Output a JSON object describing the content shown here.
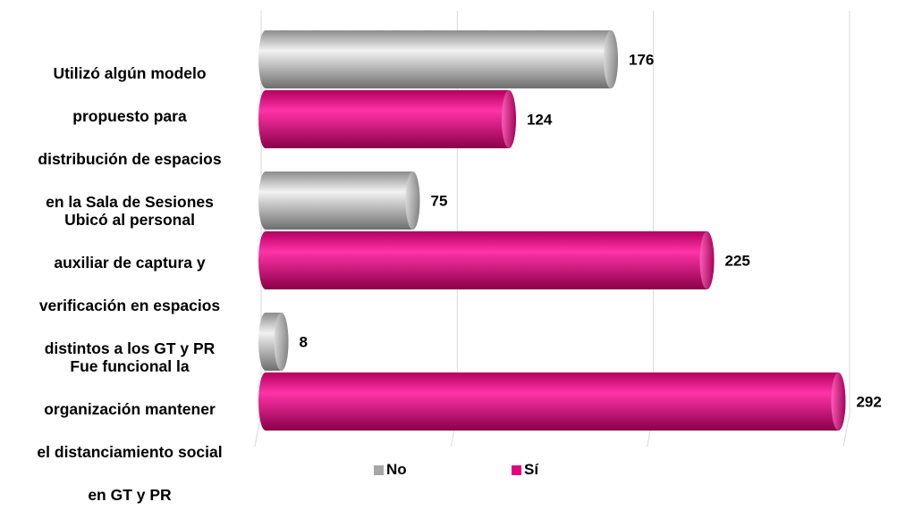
{
  "chart_data": {
    "type": "bar",
    "orientation": "horizontal",
    "categories": [
      "Utilizó algún modelo propuesto para distribución de espacios en la Sala de Sesiones",
      "Ubicó al personal auxiliar de captura y verificación en espacios distintos a los GT y PR",
      "Fue funcional la organización mantener el distanciamiento social en GT y PR"
    ],
    "category_lines": [
      [
        "Utilizó algún modelo",
        "propuesto para",
        "distribución de espacios",
        "en la Sala de Sesiones"
      ],
      [
        "Ubicó al personal",
        "auxiliar de captura y",
        "verificación en espacios",
        "distintos a los GT y PR"
      ],
      [
        "Fue funcional la",
        "organización mantener",
        "el distanciamiento social",
        "en GT y PR"
      ]
    ],
    "series": [
      {
        "name": "No",
        "color": "#a6a6a6",
        "values": [
          176,
          75,
          8
        ]
      },
      {
        "name": "Sí",
        "color": "#e6007e",
        "values": [
          124,
          225,
          292
        ]
      }
    ],
    "xlim": [
      0,
      300
    ],
    "grid": true,
    "data_labels": true,
    "legend_position": "bottom"
  }
}
